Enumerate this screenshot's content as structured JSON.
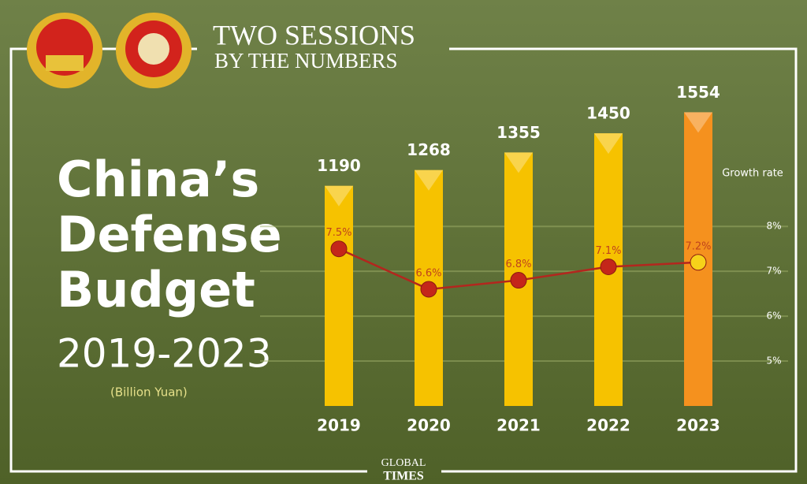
{
  "header": {
    "line1": "TWO SESSIONS",
    "line2": "BY THE NUMBERS"
  },
  "title": {
    "lines": [
      "China’s",
      "Defense",
      "Budget"
    ],
    "years": "2019-2023",
    "unit": "(Billion Yuan)"
  },
  "footer": {
    "line1": "GLOBAL",
    "line2": "TIMES"
  },
  "chart_data": {
    "type": "bar",
    "categories": [
      "2019",
      "2020",
      "2021",
      "2022",
      "2023"
    ],
    "series": [
      {
        "values": [
          1190,
          1268,
          1355,
          1450,
          1554
        ],
        "colors": [
          "#f6c200",
          "#f6c200",
          "#f6c200",
          "#f6c200",
          "#f5911e"
        ]
      },
      {
        "type": "line",
        "axis": "y2",
        "values": [
          7.5,
          6.6,
          6.8,
          7.1,
          7.2
        ],
        "value_labels": [
          "7.5%",
          "6.6%",
          "6.8%",
          "7.1%",
          "7.2%"
        ],
        "color": "#b3261e",
        "point_colors": [
          "#c4261a",
          "#c4261a",
          "#c4261a",
          "#c4261a",
          "#f6d21a"
        ]
      }
    ],
    "ylim": [
      100,
      1700
    ],
    "y2label": "Growth rate",
    "y2lim": [
      4,
      11.2
    ],
    "y2ticks": [
      {
        "value": 5,
        "label": "5%"
      },
      {
        "value": 6,
        "label": "6%"
      },
      {
        "value": 7,
        "label": "7%"
      },
      {
        "value": 8,
        "label": "8%"
      }
    ],
    "grid": true
  }
}
